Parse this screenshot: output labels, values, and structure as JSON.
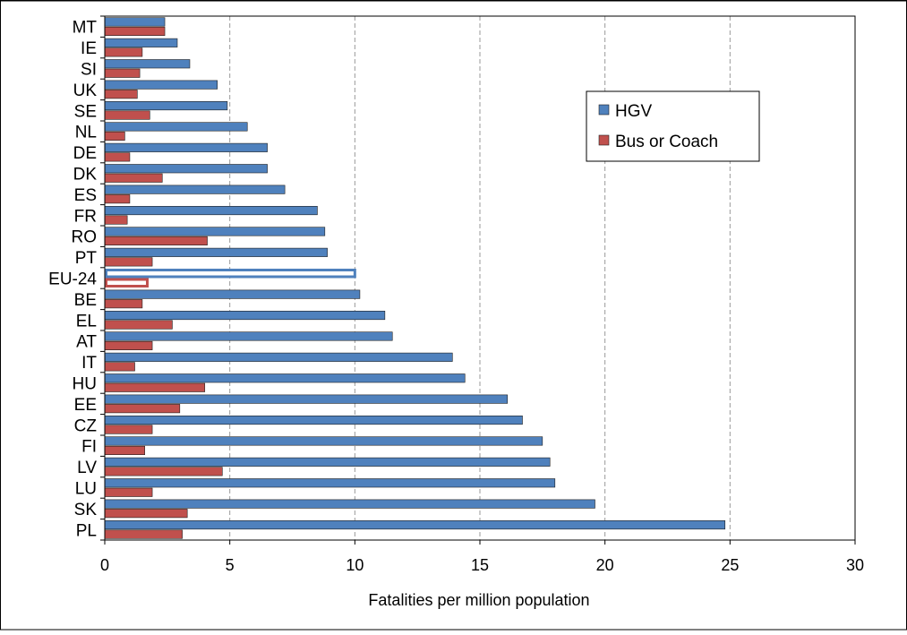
{
  "chart_data": {
    "type": "bar",
    "orientation": "horizontal",
    "title": "",
    "xlabel": "Fatalities per million population",
    "ylabel": "",
    "xlim": [
      0,
      30
    ],
    "xticks": [
      "0",
      "5",
      "10",
      "15",
      "20",
      "25",
      "30"
    ],
    "grid": "vertical dashed",
    "legend_position": "top-right",
    "highlight_category": "EU-24",
    "categories": [
      "MT",
      "IE",
      "SI",
      "UK",
      "SE",
      "NL",
      "DE",
      "DK",
      "ES",
      "FR",
      "RO",
      "PT",
      "EU-24",
      "BE",
      "EL",
      "AT",
      "IT",
      "HU",
      "EE",
      "CZ",
      "FI",
      "LV",
      "LU",
      "SK",
      "PL"
    ],
    "series": [
      {
        "name": "HGV",
        "color": "#4F81BD",
        "values": [
          2.4,
          2.9,
          3.4,
          4.5,
          4.9,
          5.7,
          6.5,
          6.5,
          7.2,
          8.5,
          8.8,
          8.9,
          10.0,
          10.2,
          11.2,
          11.5,
          13.9,
          14.4,
          16.1,
          16.7,
          17.5,
          17.8,
          18.0,
          19.6,
          24.8
        ]
      },
      {
        "name": "Bus or Coach",
        "color": "#C0504D",
        "values": [
          2.4,
          1.5,
          1.4,
          1.3,
          1.8,
          0.8,
          1.0,
          2.3,
          1.0,
          0.9,
          4.1,
          1.9,
          1.7,
          1.5,
          2.7,
          1.9,
          1.2,
          4.0,
          3.0,
          1.9,
          1.6,
          4.7,
          1.9,
          3.3,
          3.1
        ]
      }
    ]
  }
}
